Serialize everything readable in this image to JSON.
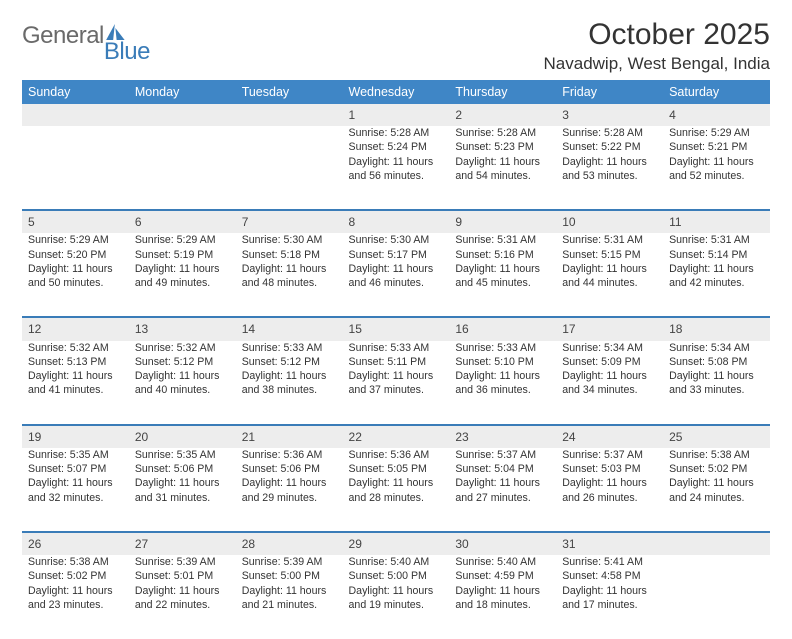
{
  "logo": {
    "part1": "General",
    "part2": "Blue"
  },
  "title": "October 2025",
  "location": "Navadwip, West Bengal, India",
  "colors": {
    "brand": "#3a7cb8",
    "header_bg": "#3f86c6",
    "row_bg": "#ededed",
    "text": "#333333",
    "logo_gray": "#6a6a6a"
  },
  "day_headers": [
    "Sunday",
    "Monday",
    "Tuesday",
    "Wednesday",
    "Thursday",
    "Friday",
    "Saturday"
  ],
  "weeks": [
    {
      "nums": [
        "",
        "",
        "",
        "1",
        "2",
        "3",
        "4"
      ],
      "cells": [
        null,
        null,
        null,
        {
          "sunrise": "Sunrise: 5:28 AM",
          "sunset": "Sunset: 5:24 PM",
          "day1": "Daylight: 11 hours",
          "day2": "and 56 minutes."
        },
        {
          "sunrise": "Sunrise: 5:28 AM",
          "sunset": "Sunset: 5:23 PM",
          "day1": "Daylight: 11 hours",
          "day2": "and 54 minutes."
        },
        {
          "sunrise": "Sunrise: 5:28 AM",
          "sunset": "Sunset: 5:22 PM",
          "day1": "Daylight: 11 hours",
          "day2": "and 53 minutes."
        },
        {
          "sunrise": "Sunrise: 5:29 AM",
          "sunset": "Sunset: 5:21 PM",
          "day1": "Daylight: 11 hours",
          "day2": "and 52 minutes."
        }
      ]
    },
    {
      "nums": [
        "5",
        "6",
        "7",
        "8",
        "9",
        "10",
        "11"
      ],
      "cells": [
        {
          "sunrise": "Sunrise: 5:29 AM",
          "sunset": "Sunset: 5:20 PM",
          "day1": "Daylight: 11 hours",
          "day2": "and 50 minutes."
        },
        {
          "sunrise": "Sunrise: 5:29 AM",
          "sunset": "Sunset: 5:19 PM",
          "day1": "Daylight: 11 hours",
          "day2": "and 49 minutes."
        },
        {
          "sunrise": "Sunrise: 5:30 AM",
          "sunset": "Sunset: 5:18 PM",
          "day1": "Daylight: 11 hours",
          "day2": "and 48 minutes."
        },
        {
          "sunrise": "Sunrise: 5:30 AM",
          "sunset": "Sunset: 5:17 PM",
          "day1": "Daylight: 11 hours",
          "day2": "and 46 minutes."
        },
        {
          "sunrise": "Sunrise: 5:31 AM",
          "sunset": "Sunset: 5:16 PM",
          "day1": "Daylight: 11 hours",
          "day2": "and 45 minutes."
        },
        {
          "sunrise": "Sunrise: 5:31 AM",
          "sunset": "Sunset: 5:15 PM",
          "day1": "Daylight: 11 hours",
          "day2": "and 44 minutes."
        },
        {
          "sunrise": "Sunrise: 5:31 AM",
          "sunset": "Sunset: 5:14 PM",
          "day1": "Daylight: 11 hours",
          "day2": "and 42 minutes."
        }
      ]
    },
    {
      "nums": [
        "12",
        "13",
        "14",
        "15",
        "16",
        "17",
        "18"
      ],
      "cells": [
        {
          "sunrise": "Sunrise: 5:32 AM",
          "sunset": "Sunset: 5:13 PM",
          "day1": "Daylight: 11 hours",
          "day2": "and 41 minutes."
        },
        {
          "sunrise": "Sunrise: 5:32 AM",
          "sunset": "Sunset: 5:12 PM",
          "day1": "Daylight: 11 hours",
          "day2": "and 40 minutes."
        },
        {
          "sunrise": "Sunrise: 5:33 AM",
          "sunset": "Sunset: 5:12 PM",
          "day1": "Daylight: 11 hours",
          "day2": "and 38 minutes."
        },
        {
          "sunrise": "Sunrise: 5:33 AM",
          "sunset": "Sunset: 5:11 PM",
          "day1": "Daylight: 11 hours",
          "day2": "and 37 minutes."
        },
        {
          "sunrise": "Sunrise: 5:33 AM",
          "sunset": "Sunset: 5:10 PM",
          "day1": "Daylight: 11 hours",
          "day2": "and 36 minutes."
        },
        {
          "sunrise": "Sunrise: 5:34 AM",
          "sunset": "Sunset: 5:09 PM",
          "day1": "Daylight: 11 hours",
          "day2": "and 34 minutes."
        },
        {
          "sunrise": "Sunrise: 5:34 AM",
          "sunset": "Sunset: 5:08 PM",
          "day1": "Daylight: 11 hours",
          "day2": "and 33 minutes."
        }
      ]
    },
    {
      "nums": [
        "19",
        "20",
        "21",
        "22",
        "23",
        "24",
        "25"
      ],
      "cells": [
        {
          "sunrise": "Sunrise: 5:35 AM",
          "sunset": "Sunset: 5:07 PM",
          "day1": "Daylight: 11 hours",
          "day2": "and 32 minutes."
        },
        {
          "sunrise": "Sunrise: 5:35 AM",
          "sunset": "Sunset: 5:06 PM",
          "day1": "Daylight: 11 hours",
          "day2": "and 31 minutes."
        },
        {
          "sunrise": "Sunrise: 5:36 AM",
          "sunset": "Sunset: 5:06 PM",
          "day1": "Daylight: 11 hours",
          "day2": "and 29 minutes."
        },
        {
          "sunrise": "Sunrise: 5:36 AM",
          "sunset": "Sunset: 5:05 PM",
          "day1": "Daylight: 11 hours",
          "day2": "and 28 minutes."
        },
        {
          "sunrise": "Sunrise: 5:37 AM",
          "sunset": "Sunset: 5:04 PM",
          "day1": "Daylight: 11 hours",
          "day2": "and 27 minutes."
        },
        {
          "sunrise": "Sunrise: 5:37 AM",
          "sunset": "Sunset: 5:03 PM",
          "day1": "Daylight: 11 hours",
          "day2": "and 26 minutes."
        },
        {
          "sunrise": "Sunrise: 5:38 AM",
          "sunset": "Sunset: 5:02 PM",
          "day1": "Daylight: 11 hours",
          "day2": "and 24 minutes."
        }
      ]
    },
    {
      "nums": [
        "26",
        "27",
        "28",
        "29",
        "30",
        "31",
        ""
      ],
      "cells": [
        {
          "sunrise": "Sunrise: 5:38 AM",
          "sunset": "Sunset: 5:02 PM",
          "day1": "Daylight: 11 hours",
          "day2": "and 23 minutes."
        },
        {
          "sunrise": "Sunrise: 5:39 AM",
          "sunset": "Sunset: 5:01 PM",
          "day1": "Daylight: 11 hours",
          "day2": "and 22 minutes."
        },
        {
          "sunrise": "Sunrise: 5:39 AM",
          "sunset": "Sunset: 5:00 PM",
          "day1": "Daylight: 11 hours",
          "day2": "and 21 minutes."
        },
        {
          "sunrise": "Sunrise: 5:40 AM",
          "sunset": "Sunset: 5:00 PM",
          "day1": "Daylight: 11 hours",
          "day2": "and 19 minutes."
        },
        {
          "sunrise": "Sunrise: 5:40 AM",
          "sunset": "Sunset: 4:59 PM",
          "day1": "Daylight: 11 hours",
          "day2": "and 18 minutes."
        },
        {
          "sunrise": "Sunrise: 5:41 AM",
          "sunset": "Sunset: 4:58 PM",
          "day1": "Daylight: 11 hours",
          "day2": "and 17 minutes."
        },
        null
      ]
    }
  ]
}
